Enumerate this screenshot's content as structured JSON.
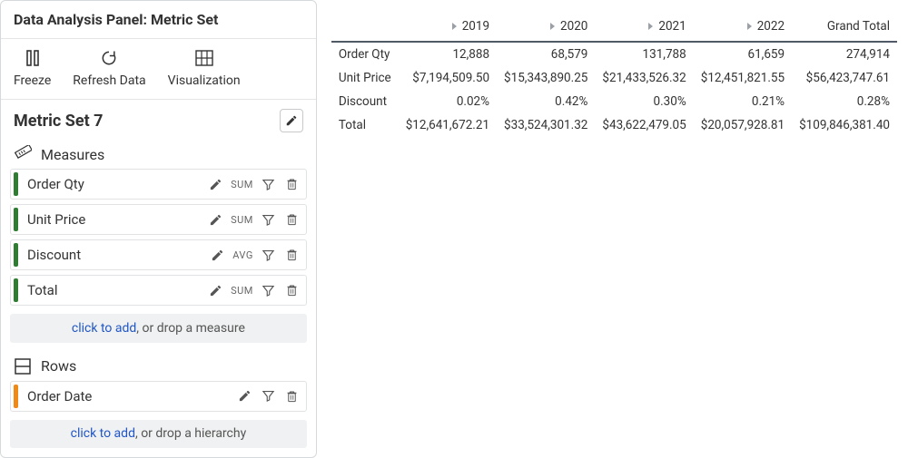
{
  "panel": {
    "title": "Data Analysis Panel: Metric Set",
    "toolbar": {
      "freeze": "Freeze",
      "refresh": "Refresh Data",
      "visualize": "Visualization"
    },
    "metric_set_label": "Metric Set 7",
    "groups": {
      "measures": {
        "label": "Measures",
        "items": [
          {
            "label": "Order Qty",
            "agg": "SUM"
          },
          {
            "label": "Unit Price",
            "agg": "SUM"
          },
          {
            "label": "Discount",
            "agg": "AVG"
          },
          {
            "label": "Total",
            "agg": "SUM"
          }
        ],
        "drop_link": "click to add",
        "drop_rest": ", or drop a measure"
      },
      "rows": {
        "label": "Rows",
        "items": [
          {
            "label": "Order Date"
          }
        ],
        "drop_link": "click to add",
        "drop_rest": ", or drop a hierarchy"
      }
    }
  },
  "pivot": {
    "years": [
      "2019",
      "2020",
      "2021",
      "2022"
    ],
    "grand_total_label": "Grand Total",
    "rows": [
      {
        "label": "Order Qty",
        "cells": [
          "12,888",
          "68,579",
          "131,788",
          "61,659"
        ],
        "total": "274,914"
      },
      {
        "label": "Unit Price",
        "cells": [
          "$7,194,509.50",
          "$15,343,890.25",
          "$21,433,526.32",
          "$12,451,821.55"
        ],
        "total": "$56,423,747.61"
      },
      {
        "label": "Discount",
        "cells": [
          "0.02%",
          "0.42%",
          "0.30%",
          "0.21%"
        ],
        "total": "0.28%"
      },
      {
        "label": "Total",
        "cells": [
          "$12,641,672.21",
          "$33,524,301.32",
          "$43,622,479.05",
          "$20,057,928.81"
        ],
        "total": "$109,846,381.40"
      }
    ]
  },
  "colors": {
    "measure_bar": "#2e7d32",
    "row_bar": "#ef8a17"
  }
}
